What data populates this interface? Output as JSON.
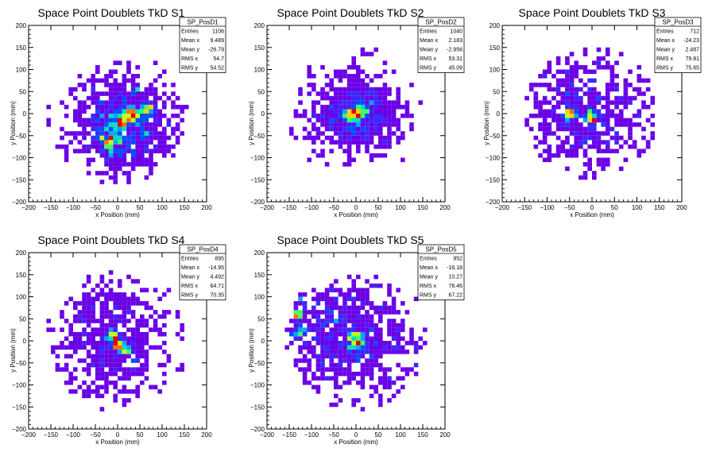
{
  "chart_data": [
    {
      "type": "heatmap",
      "title": "Space Point Doublets TkD S1",
      "xlabel": "x Position (mm)",
      "ylabel": "y Position (mm)",
      "xlim": [
        -200,
        200
      ],
      "ylim": [
        -200,
        200
      ],
      "xticks": [
        "−200",
        "−150",
        "−100",
        "−50",
        "0",
        "50",
        "100",
        "150",
        "200"
      ],
      "yticks": [
        "200",
        "150",
        "100",
        "50",
        "0",
        "−50",
        "−100",
        "−150",
        "−200"
      ],
      "bin_width": 10,
      "stats": {
        "name": "SP_PosD1",
        "rows": [
          {
            "label": "Entries",
            "value": "1106"
          },
          {
            "label": "Mean x",
            "value": "9.489"
          },
          {
            "label": "Mean y",
            "value": "-26.79"
          },
          {
            "label": "RMS x",
            "value": "54.7"
          },
          {
            "label": "RMS y",
            "value": "54.52"
          }
        ]
      },
      "distribution": {
        "mean_x": 9.489,
        "mean_y": -26.79,
        "rms_x": 54.7,
        "rms_y": 54.52,
        "entries": 1106,
        "max_radius": 160,
        "hot_spots": [
          [
            -20,
            -60
          ],
          [
            10,
            -20
          ],
          [
            35,
            0
          ],
          [
            70,
            10
          ]
        ]
      }
    },
    {
      "type": "heatmap",
      "title": "Space Point Doublets TkD S2",
      "xlabel": "x Position (mm)",
      "ylabel": "y Position (mm)",
      "xlim": [
        -200,
        200
      ],
      "ylim": [
        -200,
        200
      ],
      "xticks": [
        "−200",
        "−150",
        "−100",
        "−50",
        "0",
        "50",
        "100",
        "150",
        "200"
      ],
      "yticks": [
        "200",
        "150",
        "100",
        "50",
        "0",
        "−50",
        "−100",
        "−150",
        "−200"
      ],
      "bin_width": 10,
      "stats": {
        "name": "SP_PosD2",
        "rows": [
          {
            "label": "Entries",
            "value": "1040"
          },
          {
            "label": "Mean x",
            "value": "2.183"
          },
          {
            "label": "Mean y",
            "value": "-2.956"
          },
          {
            "label": "RMS x",
            "value": "53.31"
          },
          {
            "label": "RMS y",
            "value": "45.09"
          }
        ]
      },
      "distribution": {
        "mean_x": 2.183,
        "mean_y": -2.956,
        "rms_x": 53.31,
        "rms_y": 45.09,
        "entries": 1040,
        "max_radius": 160,
        "hot_spots": [
          [
            0,
            0
          ],
          [
            10,
            5
          ],
          [
            -10,
            -5
          ]
        ]
      }
    },
    {
      "type": "heatmap",
      "title": "Space Point Doublets TkD S3",
      "xlabel": "x Position (mm)",
      "ylabel": "y Position (mm)",
      "xlim": [
        -200,
        200
      ],
      "ylim": [
        -200,
        200
      ],
      "xticks": [
        "−200",
        "−150",
        "−100",
        "−50",
        "0",
        "50",
        "100",
        "150",
        "200"
      ],
      "yticks": [
        "200",
        "150",
        "100",
        "50",
        "0",
        "−50",
        "−100",
        "−150",
        "−200"
      ],
      "bin_width": 10,
      "stats": {
        "name": "SP_PosD3",
        "rows": [
          {
            "label": "Entries",
            "value": "712"
          },
          {
            "label": "Mean x",
            "value": "-24.23"
          },
          {
            "label": "Mean y",
            "value": "2.487"
          },
          {
            "label": "RMS x",
            "value": "79.81"
          },
          {
            "label": "RMS y",
            "value": "75.65"
          }
        ]
      },
      "distribution": {
        "mean_x": -24.23,
        "mean_y": 2.487,
        "rms_x": 79.81,
        "rms_y": 75.65,
        "entries": 712,
        "max_radius": 150,
        "hot_spots": [
          [
            -50,
            0
          ],
          [
            0,
            -10
          ]
        ]
      }
    },
    {
      "type": "heatmap",
      "title": "Space Point Doublets TkD S4",
      "xlabel": "x Position (mm)",
      "ylabel": "y Position (mm)",
      "xlim": [
        -200,
        200
      ],
      "ylim": [
        -200,
        200
      ],
      "xticks": [
        "−200",
        "−150",
        "−100",
        "−50",
        "0",
        "50",
        "100",
        "150",
        "200"
      ],
      "yticks": [
        "200",
        "150",
        "100",
        "50",
        "0",
        "−50",
        "−100",
        "−150",
        "−200"
      ],
      "bin_width": 10,
      "stats": {
        "name": "SP_PosD4",
        "rows": [
          {
            "label": "Entries",
            "value": "895"
          },
          {
            "label": "Mean x",
            "value": "-14.95"
          },
          {
            "label": "Mean y",
            "value": "4.492"
          },
          {
            "label": "RMS x",
            "value": "64.71"
          },
          {
            "label": "RMS y",
            "value": "70.35"
          }
        ]
      },
      "distribution": {
        "mean_x": -14.95,
        "mean_y": 4.492,
        "rms_x": 64.71,
        "rms_y": 70.35,
        "entries": 895,
        "max_radius": 160,
        "hot_spots": [
          [
            0,
            -10
          ],
          [
            20,
            -20
          ],
          [
            -10,
            10
          ]
        ]
      }
    },
    {
      "type": "heatmap",
      "title": "Space Point Doublets TkD S5",
      "xlabel": "x Position (mm)",
      "ylabel": "y Position (mm)",
      "xlim": [
        -200,
        200
      ],
      "ylim": [
        -200,
        200
      ],
      "xticks": [
        "−200",
        "−150",
        "−100",
        "−50",
        "0",
        "50",
        "100",
        "150",
        "200"
      ],
      "yticks": [
        "200",
        "150",
        "100",
        "50",
        "0",
        "−50",
        "−100",
        "−150",
        "−200"
      ],
      "bin_width": 10,
      "stats": {
        "name": "SP_PosD5",
        "rows": [
          {
            "label": "Entries",
            "value": "952"
          },
          {
            "label": "Mean x",
            "value": "-16.18"
          },
          {
            "label": "Mean y",
            "value": "10.27"
          },
          {
            "label": "RMS x",
            "value": "76.46"
          },
          {
            "label": "RMS y",
            "value": "67.22"
          }
        ]
      },
      "distribution": {
        "mean_x": -16.18,
        "mean_y": 10.27,
        "rms_x": 76.46,
        "rms_y": 67.22,
        "entries": 952,
        "max_radius": 160,
        "hot_spots": [
          [
            -130,
            100
          ],
          [
            -130,
            60
          ],
          [
            -130,
            20
          ],
          [
            0,
            10
          ],
          [
            10,
            0
          ],
          [
            -10,
            -10
          ]
        ]
      }
    }
  ],
  "colors": {
    "background": "#ffffff",
    "frame": "#000000",
    "palette": [
      "#6a00e6",
      "#3b28ff",
      "#0050ff",
      "#00a6ff",
      "#00e0c0",
      "#40ff60",
      "#c0ff20",
      "#ffd000",
      "#ff7000",
      "#e00000"
    ]
  }
}
